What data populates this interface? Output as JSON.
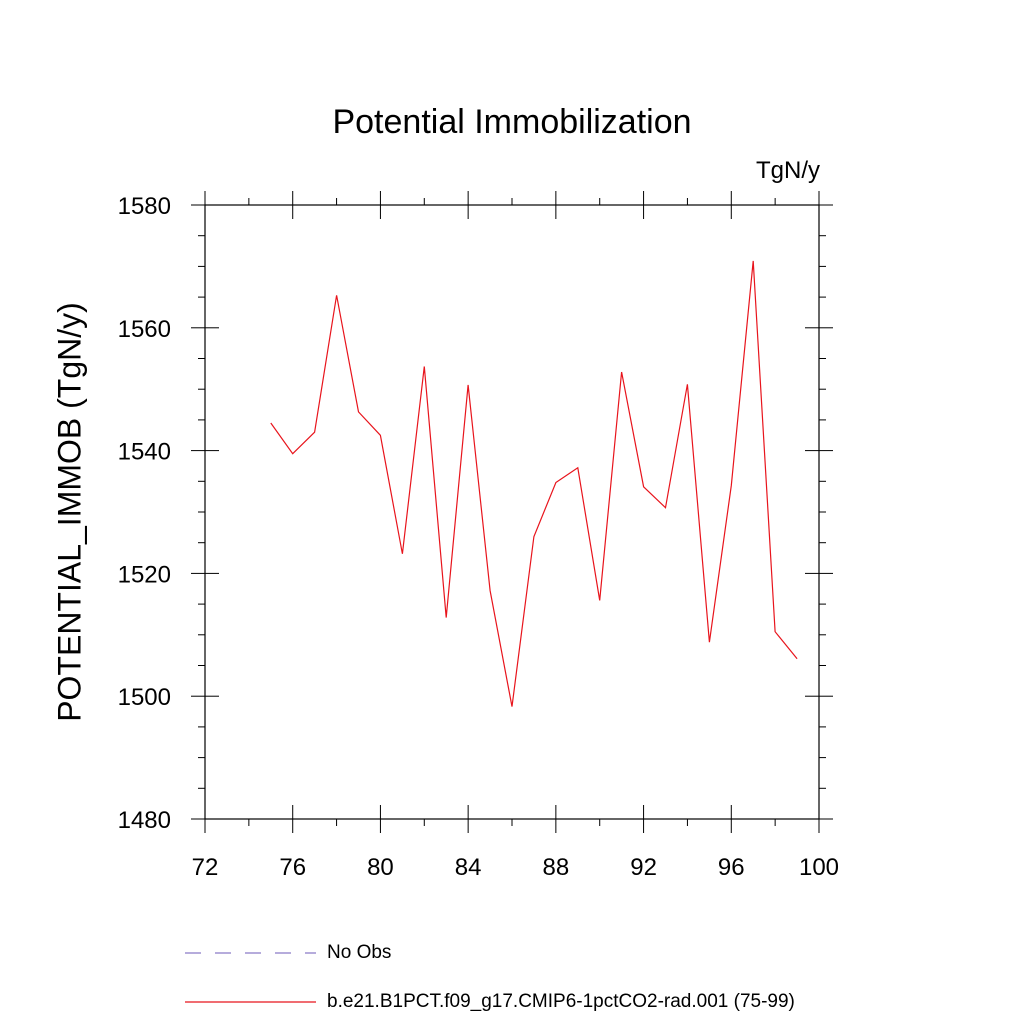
{
  "chart_data": {
    "type": "line",
    "title": "Potential Immobilization",
    "units_label": "TgN/y",
    "ylabel": "POTENTIAL_IMMOB  (TgN/y)",
    "xlabel": "",
    "xlim": [
      72,
      100
    ],
    "ylim": [
      1480,
      1580
    ],
    "x_ticks": [
      72,
      76,
      80,
      84,
      88,
      92,
      96,
      100
    ],
    "y_ticks": [
      1480,
      1500,
      1520,
      1540,
      1560,
      1580
    ],
    "grid": false,
    "legend_placement": "bottom",
    "series": [
      {
        "name": "b.e21.B1PCT.f09_g17.CMIP6-1pctCO2-rad.001 (75-99)",
        "color": "#e8141c",
        "style": "solid",
        "x": [
          75,
          76,
          77,
          78,
          79,
          80,
          81,
          82,
          83,
          84,
          85,
          86,
          87,
          88,
          89,
          90,
          91,
          92,
          93,
          94,
          95,
          96,
          97,
          98,
          99
        ],
        "y": [
          1544.5,
          1539.5,
          1543,
          1565.3,
          1546.3,
          1542.5,
          1523.2,
          1553.7,
          1512.8,
          1550.7,
          1517.2,
          1498.3,
          1526,
          1534.8,
          1537.2,
          1515.6,
          1552.8,
          1534.1,
          1530.7,
          1550.8,
          1508.8,
          1534.3,
          1570.9,
          1510.5,
          1506.1
        ]
      }
    ],
    "legend": [
      {
        "label": "No Obs",
        "color": "#8a7ac8",
        "style": "dashed"
      },
      {
        "label": "b.e21.B1PCT.f09_g17.CMIP6-1pctCO2-rad.001 (75-99)",
        "color": "#e8141c",
        "style": "solid"
      }
    ]
  }
}
